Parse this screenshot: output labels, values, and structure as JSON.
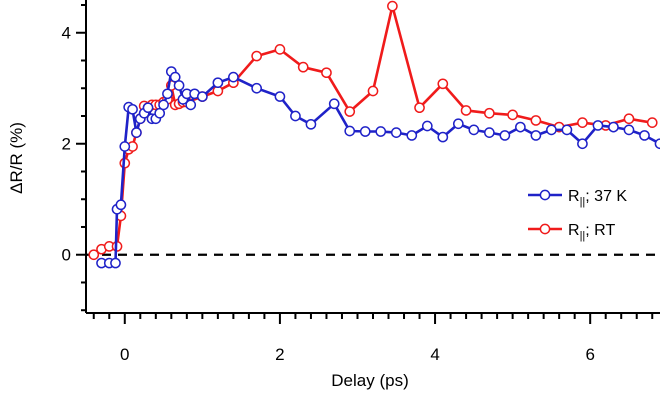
{
  "chart_data": {
    "type": "line",
    "xlabel": "Delay (ps)",
    "ylabel": "ΔR/R (%)",
    "xlim": [
      -0.5,
      6.9
    ],
    "ylim": [
      -1.05,
      4.5
    ],
    "x_ticks": [
      0,
      2,
      4,
      6
    ],
    "x_tick_labels": [
      "0",
      "2",
      "4",
      "6"
    ],
    "y_ticks": [
      0,
      2,
      4
    ],
    "y_tick_labels": [
      "0",
      "2",
      "4"
    ],
    "zero_line": true,
    "grid": false,
    "legend_position": "right",
    "series": [
      {
        "name_parts": [
          "R",
          "||",
          "; 37 K"
        ],
        "color": "#1f22c8",
        "marker": "open-circle",
        "x": [
          -0.3,
          -0.2,
          -0.12,
          -0.1,
          -0.05,
          0.0,
          0.05,
          0.1,
          0.15,
          0.2,
          0.25,
          0.3,
          0.35,
          0.4,
          0.45,
          0.5,
          0.55,
          0.6,
          0.65,
          0.7,
          0.75,
          0.8,
          0.85,
          0.9,
          1.0,
          1.2,
          1.4,
          1.7,
          2.0,
          2.2,
          2.4,
          2.7,
          2.9,
          3.1,
          3.3,
          3.5,
          3.7,
          3.9,
          4.1,
          4.3,
          4.5,
          4.7,
          4.9,
          5.1,
          5.3,
          5.5,
          5.7,
          5.9,
          6.1,
          6.3,
          6.5,
          6.7,
          6.9
        ],
        "y": [
          -0.15,
          -0.15,
          -0.15,
          0.82,
          0.9,
          1.95,
          2.66,
          2.62,
          2.2,
          2.45,
          2.55,
          2.65,
          2.45,
          2.45,
          2.55,
          2.7,
          2.9,
          3.3,
          3.2,
          3.05,
          2.8,
          2.9,
          2.7,
          2.9,
          2.85,
          3.1,
          3.2,
          3.0,
          2.85,
          2.5,
          2.35,
          2.72,
          2.23,
          2.22,
          2.22,
          2.2,
          2.15,
          2.32,
          2.12,
          2.36,
          2.25,
          2.2,
          2.15,
          2.3,
          2.15,
          2.25,
          2.25,
          2.0,
          2.33,
          2.3,
          2.25,
          2.15,
          2.0
        ]
      },
      {
        "name_parts": [
          "R",
          "||",
          "; RT"
        ],
        "color": "#f01b1b",
        "marker": "open-circle",
        "x": [
          -0.4,
          -0.3,
          -0.2,
          -0.1,
          -0.05,
          0.0,
          0.05,
          0.1,
          0.15,
          0.2,
          0.25,
          0.3,
          0.35,
          0.4,
          0.45,
          0.5,
          0.55,
          0.6,
          0.65,
          0.7,
          0.75,
          0.8,
          1.0,
          1.2,
          1.4,
          1.7,
          2.0,
          2.3,
          2.6,
          2.9,
          3.2,
          3.45,
          3.8,
          4.1,
          4.4,
          4.7,
          5.0,
          5.3,
          5.6,
          5.9,
          6.2,
          6.5,
          6.8
        ],
        "y": [
          0.0,
          0.1,
          0.15,
          0.15,
          0.7,
          1.65,
          1.9,
          1.95,
          2.2,
          2.45,
          2.68,
          2.65,
          2.7,
          2.7,
          2.7,
          2.75,
          2.8,
          3.05,
          2.7,
          2.72,
          2.75,
          2.75,
          2.85,
          2.95,
          3.1,
          3.58,
          3.7,
          3.38,
          3.28,
          2.58,
          2.95,
          4.48,
          2.65,
          3.08,
          2.6,
          2.55,
          2.52,
          2.42,
          2.3,
          2.38,
          2.33,
          2.45,
          2.38
        ]
      }
    ]
  }
}
